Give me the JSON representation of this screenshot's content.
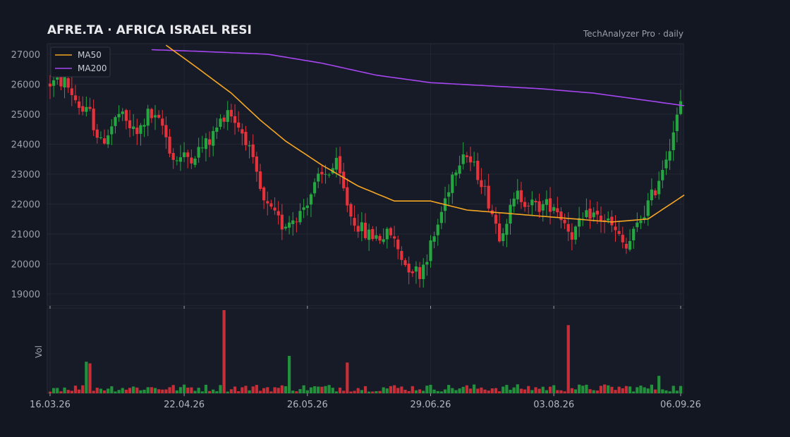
{
  "header": {
    "title": "AFRE.TA  ·  AFRICA ISRAEL RESI",
    "subtitle": "TechAnalyzer Pro · daily"
  },
  "colors": {
    "background": "#131722",
    "panel": "#161b27",
    "grid": "#2a2e39",
    "up": "#26a641",
    "down": "#e5323b",
    "ma50": "#f5a623",
    "ma200": "#a646f0"
  },
  "chart_data": {
    "type": "candlestick",
    "y_range": [
      18600,
      27350
    ],
    "y_ticks": [
      "19000",
      "20000",
      "21000",
      "22000",
      "23000",
      "24000",
      "25000",
      "26000",
      "27000"
    ],
    "x_ticks": [
      "16.03.26",
      "22.04.26",
      "26.05.26",
      "29.06.26",
      "03.08.26",
      "06.09.26"
    ],
    "volume_label": "Vol",
    "legend": [
      {
        "name": "MA50",
        "color": "#f5a623"
      },
      {
        "name": "MA200",
        "color": "#a646f0"
      }
    ],
    "num_days": 175,
    "candle_anchors": [
      [
        0,
        26000
      ],
      [
        5,
        26100
      ],
      [
        10,
        25100
      ],
      [
        12,
        25000
      ],
      [
        15,
        24000
      ],
      [
        20,
        25000
      ],
      [
        25,
        24300
      ],
      [
        28,
        25000
      ],
      [
        32,
        24600
      ],
      [
        35,
        23500
      ],
      [
        40,
        23600
      ],
      [
        45,
        24100
      ],
      [
        50,
        25200
      ],
      [
        55,
        24200
      ],
      [
        60,
        22000
      ],
      [
        65,
        21300
      ],
      [
        70,
        21700
      ],
      [
        75,
        22800
      ],
      [
        80,
        23300
      ],
      [
        84,
        21600
      ],
      [
        88,
        21000
      ],
      [
        92,
        20900
      ],
      [
        95,
        21000
      ],
      [
        99,
        20000
      ],
      [
        103,
        19700
      ],
      [
        107,
        20900
      ],
      [
        112,
        23000
      ],
      [
        115,
        23800
      ],
      [
        120,
        22800
      ],
      [
        125,
        21000
      ],
      [
        130,
        22300
      ],
      [
        135,
        21900
      ],
      [
        140,
        22000
      ],
      [
        145,
        21000
      ],
      [
        150,
        21700
      ],
      [
        155,
        21400
      ],
      [
        160,
        20500
      ],
      [
        164,
        21500
      ],
      [
        168,
        22500
      ],
      [
        172,
        24000
      ],
      [
        175,
        25300
      ]
    ],
    "ma50": [
      [
        32,
        27300
      ],
      [
        40,
        26600
      ],
      [
        50,
        25700
      ],
      [
        58,
        24800
      ],
      [
        65,
        24100
      ],
      [
        75,
        23300
      ],
      [
        85,
        22600
      ],
      [
        95,
        22100
      ],
      [
        105,
        22100
      ],
      [
        115,
        21800
      ],
      [
        125,
        21700
      ],
      [
        135,
        21600
      ],
      [
        145,
        21500
      ],
      [
        155,
        21400
      ],
      [
        165,
        21500
      ],
      [
        175,
        22300
      ]
    ],
    "ma200": [
      [
        28,
        27150
      ],
      [
        40,
        27100
      ],
      [
        60,
        27000
      ],
      [
        75,
        26700
      ],
      [
        90,
        26300
      ],
      [
        105,
        26050
      ],
      [
        120,
        25950
      ],
      [
        135,
        25850
      ],
      [
        150,
        25700
      ],
      [
        165,
        25450
      ],
      [
        175,
        25280
      ]
    ],
    "volume_spikes": [
      [
        10,
        0.38
      ],
      [
        11,
        0.36
      ],
      [
        48,
        1.0
      ],
      [
        66,
        0.45
      ],
      [
        82,
        0.37
      ],
      [
        143,
        0.82
      ],
      [
        168,
        0.21
      ]
    ]
  }
}
